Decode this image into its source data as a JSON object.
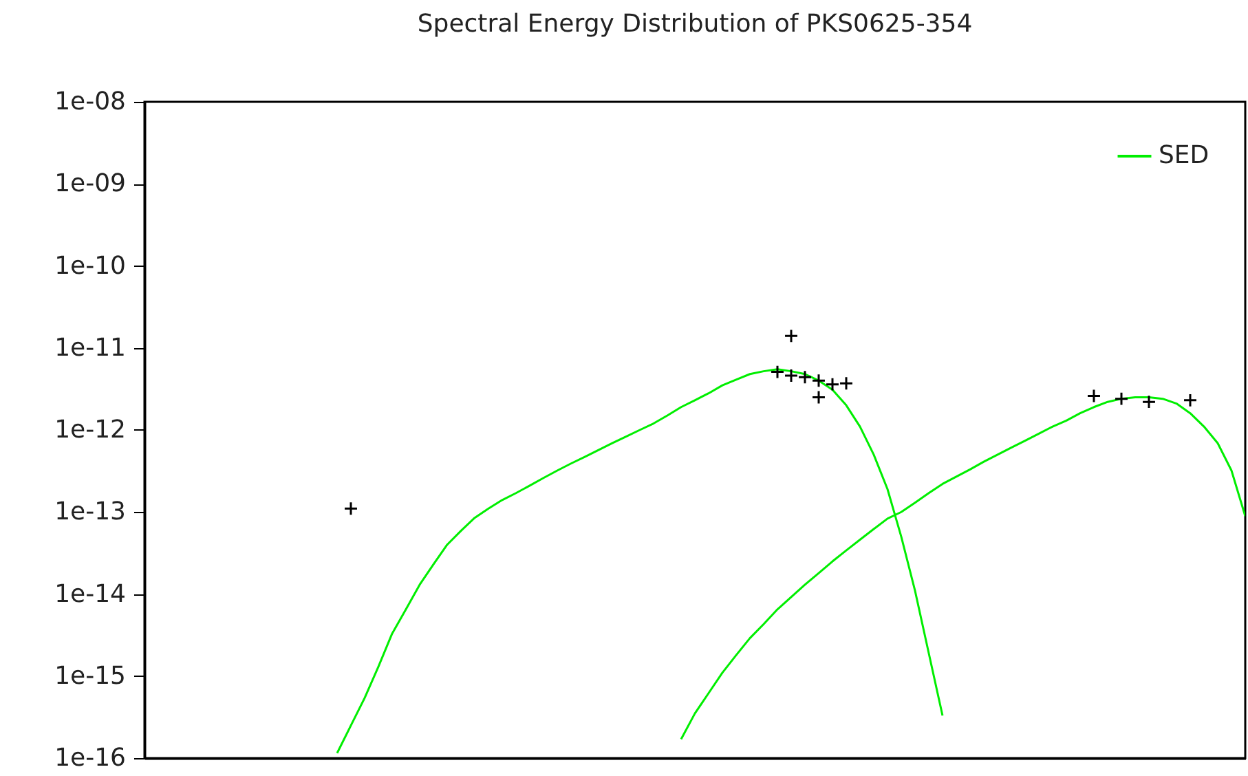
{
  "chart_data": {
    "type": "line",
    "title": "Spectral Energy Distribution of PKS0625-354",
    "categories": [
      null,
      null,
      null,
      null,
      null,
      null,
      null,
      null,
      null,
      null,
      null,
      null,
      null,
      null,
      null,
      null,
      null,
      null,
      null,
      null,
      null,
      null,
      null,
      null,
      null,
      null,
      null,
      null,
      null,
      null,
      null,
      null,
      null,
      null,
      null,
      null,
      null,
      null,
      null,
      null,
      null,
      null,
      null,
      null,
      null,
      null,
      null,
      null,
      null,
      null,
      null,
      null,
      null,
      null,
      null,
      null,
      null,
      null,
      null,
      null,
      null,
      null,
      null,
      null,
      null,
      null,
      null,
      null,
      null,
      null,
      null,
      null,
      null,
      null,
      null,
      null,
      null,
      null,
      null,
      null,
      null
    ],
    "log": "y",
    "ylim": [
      1e-16,
      1e-08
    ],
    "yticks": [
      {
        "value": 1e-16,
        "label": "1e-16"
      },
      {
        "value": 1e-15,
        "label": "1e-15"
      },
      {
        "value": 1e-14,
        "label": "1e-14"
      },
      {
        "value": 1e-13,
        "label": "1e-13"
      },
      {
        "value": 1e-12,
        "label": "1e-12"
      },
      {
        "value": 1e-11,
        "label": "1e-11"
      },
      {
        "value": 1e-10,
        "label": "1e-10"
      },
      {
        "value": 1e-09,
        "label": "1e-09"
      },
      {
        "value": 1e-08,
        "label": "1e-08"
      }
    ],
    "tick_labels": "y",
    "legend": "top right",
    "series": [
      {
        "name": "SED",
        "color": "#00ee00",
        "values": [
          null,
          null,
          null,
          null,
          null,
          null,
          null,
          null,
          null,
          null,
          null,
          null,
          null,
          null,
          1.15e-16,
          2.5e-16,
          5.4e-16,
          1.3e-15,
          3.3e-15,
          6.5e-15,
          1.3e-14,
          2.3e-14,
          4e-14,
          5.9e-14,
          8.5e-14,
          1.1e-13,
          1.4e-13,
          1.7e-13,
          2.1e-13,
          2.6e-13,
          3.2e-13,
          3.9e-13,
          4.7e-13,
          5.7e-13,
          6.9e-13,
          8.3e-13,
          1e-12,
          1.2e-12,
          1.5e-12,
          1.9e-12,
          2.3e-12,
          2.8e-12,
          3.5e-12,
          4.1e-12,
          4.8e-12,
          5.2e-12,
          5.5e-12,
          5.2e-12,
          4.8e-12,
          4e-12,
          3.1e-12,
          2e-12,
          1.1e-12,
          5e-13,
          1.9e-13,
          5e-14,
          1.1e-14,
          1.9e-15,
          3.3e-16,
          null,
          null,
          null,
          null,
          null,
          null,
          null,
          null,
          null,
          null,
          null,
          null,
          null,
          null,
          null,
          null,
          null,
          null,
          null,
          null,
          null,
          null
        ]
      },
      {
        "color": "#00ee00",
        "values": [
          null,
          null,
          null,
          null,
          null,
          null,
          null,
          null,
          null,
          null,
          null,
          null,
          null,
          null,
          null,
          null,
          null,
          null,
          null,
          null,
          null,
          null,
          null,
          null,
          null,
          null,
          null,
          null,
          null,
          null,
          null,
          null,
          null,
          null,
          null,
          null,
          null,
          null,
          null,
          1.7e-16,
          3.5e-16,
          6.2e-16,
          1.1e-15,
          1.8e-15,
          2.9e-15,
          4.3e-15,
          6.5e-15,
          9.2e-15,
          1.3e-14,
          1.8e-14,
          2.5e-14,
          3.4e-14,
          4.6e-14,
          6.2e-14,
          8.3e-14,
          1e-13,
          1.3e-13,
          1.7e-13,
          2.2e-13,
          2.7e-13,
          3.3e-13,
          4.1e-13,
          5e-13,
          6.1e-13,
          7.4e-13,
          9e-13,
          1.1e-12,
          1.3e-12,
          1.6e-12,
          1.9e-12,
          2.2e-12,
          2.4e-12,
          2.5e-12,
          2.5e-12,
          2.4e-12,
          2.1e-12,
          1.6e-12,
          1.1e-12,
          6.9e-13,
          3.2e-13,
          8.9e-14
        ]
      },
      {
        "type": "scatter",
        "marker": "cross",
        "color": "#000000",
        "values": [
          null,
          null,
          null,
          null,
          null,
          null,
          null,
          null,
          null,
          null,
          null,
          null,
          null,
          null,
          null,
          1.1e-13,
          null,
          null,
          null,
          null,
          null,
          null,
          null,
          null,
          null,
          null,
          null,
          null,
          null,
          null,
          null,
          null,
          null,
          null,
          null,
          null,
          null,
          null,
          null,
          null,
          null,
          null,
          null,
          null,
          null,
          null,
          5.1e-12,
          4.6e-12,
          4.4e-12,
          4e-12,
          3.6e-12,
          3.7e-12,
          null,
          null,
          null,
          null,
          null,
          null,
          null,
          null,
          null,
          null,
          null,
          null,
          null,
          null,
          null,
          null,
          null,
          2.6e-12,
          null,
          2.4e-12,
          null,
          2.2e-12,
          null,
          null,
          2.3e-12,
          null,
          null,
          null,
          null
        ]
      },
      {
        "type": "scatter",
        "marker": "cross",
        "color": "#000000",
        "values": [
          null,
          null,
          null,
          null,
          null,
          null,
          null,
          null,
          null,
          null,
          null,
          null,
          null,
          null,
          null,
          null,
          null,
          null,
          null,
          null,
          null,
          null,
          null,
          null,
          null,
          null,
          null,
          null,
          null,
          null,
          null,
          null,
          null,
          null,
          null,
          null,
          null,
          null,
          null,
          null,
          null,
          null,
          null,
          null,
          null,
          null,
          null,
          1.4e-11,
          null,
          2.5e-12,
          null,
          null,
          null,
          null,
          null,
          null,
          null,
          null,
          null,
          null,
          null,
          null,
          null,
          null,
          null,
          null,
          null,
          null,
          null,
          null,
          null,
          null,
          null,
          null,
          null,
          null,
          null,
          null,
          null,
          null,
          null
        ]
      }
    ]
  }
}
